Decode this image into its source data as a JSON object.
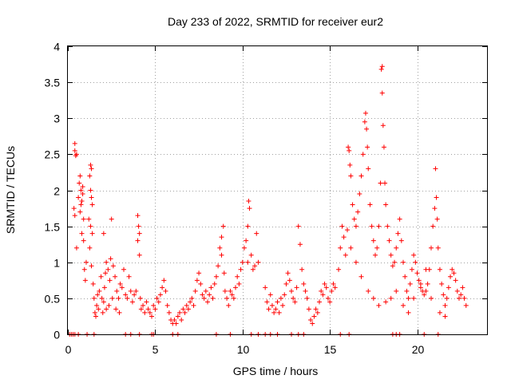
{
  "chart_data": {
    "type": "scatter",
    "title": "Day 233 of 2022, SRMTID for receiver eur2",
    "xlabel": "GPS time / hours",
    "ylabel": "SRMTID / TECUs",
    "xlim": [
      0,
      24
    ],
    "ylim": [
      0,
      4
    ],
    "xticks": [
      0,
      5,
      10,
      15,
      20
    ],
    "xtick_labels": [
      "0",
      "5",
      "10",
      "15",
      "20"
    ],
    "yticks": [
      0,
      0.5,
      1,
      1.5,
      2,
      2.5,
      3,
      3.5,
      4
    ],
    "ytick_labels": [
      "0",
      "0.5",
      "1",
      "1.5",
      "2",
      "2.5",
      "3",
      "3.5",
      "4"
    ],
    "grid": true,
    "marker": "+",
    "color": "#ff0000",
    "series": [
      {
        "name": "SRMTID",
        "points": [
          [
            0.1,
            0.0
          ],
          [
            0.2,
            0.0
          ],
          [
            0.3,
            0.0
          ],
          [
            0.4,
            0.0
          ],
          [
            0.6,
            0.0
          ],
          [
            1.1,
            0.0
          ],
          [
            1.5,
            0.0
          ],
          [
            3.3,
            0.0
          ],
          [
            3.6,
            0.0
          ],
          [
            4.1,
            0.0
          ],
          [
            4.8,
            0.0
          ],
          [
            4.9,
            0.0
          ],
          [
            6.0,
            0.0
          ],
          [
            6.3,
            0.0
          ],
          [
            8.5,
            0.0
          ],
          [
            9.3,
            0.0
          ],
          [
            10.5,
            0.0
          ],
          [
            10.9,
            0.0
          ],
          [
            11.3,
            0.0
          ],
          [
            11.6,
            0.0
          ],
          [
            12.0,
            0.0
          ],
          [
            12.8,
            0.0
          ],
          [
            13.2,
            0.0
          ],
          [
            13.5,
            0.0
          ],
          [
            15.6,
            0.0
          ],
          [
            16.1,
            0.0
          ],
          [
            18.6,
            0.0
          ],
          [
            18.8,
            0.0
          ],
          [
            19.0,
            0.0
          ],
          [
            20.4,
            0.0
          ],
          [
            21.2,
            0.0
          ],
          [
            0.4,
            2.65
          ],
          [
            0.4,
            2.55
          ],
          [
            0.45,
            2.48
          ],
          [
            0.5,
            2.5
          ],
          [
            0.35,
            1.75
          ],
          [
            0.4,
            1.65
          ],
          [
            0.5,
            1.2
          ],
          [
            0.6,
            1.9
          ],
          [
            0.65,
            2.1
          ],
          [
            0.7,
            2.2
          ],
          [
            0.75,
            2.0
          ],
          [
            0.8,
            1.85
          ],
          [
            0.85,
            1.95
          ],
          [
            0.9,
            1.6
          ],
          [
            0.8,
            1.4
          ],
          [
            0.9,
            1.3
          ],
          [
            0.95,
            0.9
          ],
          [
            1.0,
            0.75
          ],
          [
            1.05,
            1.0
          ],
          [
            0.7,
            1.7
          ],
          [
            0.75,
            1.8
          ],
          [
            0.85,
            2.05
          ],
          [
            1.3,
            2.35
          ],
          [
            1.35,
            2.3
          ],
          [
            1.25,
            2.2
          ],
          [
            1.3,
            2.0
          ],
          [
            1.35,
            1.9
          ],
          [
            1.4,
            1.8
          ],
          [
            1.2,
            1.6
          ],
          [
            1.3,
            1.5
          ],
          [
            1.4,
            1.4
          ],
          [
            1.25,
            1.2
          ],
          [
            1.35,
            0.95
          ],
          [
            1.45,
            0.7
          ],
          [
            1.5,
            0.5
          ],
          [
            1.55,
            0.3
          ],
          [
            1.6,
            0.25
          ],
          [
            1.65,
            0.4
          ],
          [
            1.7,
            0.55
          ],
          [
            1.75,
            0.35
          ],
          [
            1.8,
            0.6
          ],
          [
            1.9,
            0.8
          ],
          [
            1.95,
            0.5
          ],
          [
            2.0,
            0.3
          ],
          [
            2.05,
            0.45
          ],
          [
            2.1,
            0.65
          ],
          [
            2.15,
            0.85
          ],
          [
            2.2,
            1.0
          ],
          [
            2.3,
            0.9
          ],
          [
            2.4,
            0.75
          ],
          [
            2.45,
            1.05
          ],
          [
            2.5,
            1.6
          ],
          [
            2.6,
            0.95
          ],
          [
            2.7,
            0.8
          ],
          [
            2.8,
            0.6
          ],
          [
            2.9,
            0.5
          ],
          [
            3.0,
            0.7
          ],
          [
            3.1,
            0.65
          ],
          [
            3.2,
            0.9
          ],
          [
            3.3,
            0.55
          ],
          [
            3.4,
            0.5
          ],
          [
            3.5,
            0.8
          ],
          [
            3.6,
            0.6
          ],
          [
            3.7,
            0.45
          ],
          [
            3.8,
            0.55
          ],
          [
            3.9,
            0.6
          ],
          [
            2.05,
            1.4
          ],
          [
            2.2,
            0.35
          ],
          [
            2.35,
            0.4
          ],
          [
            2.55,
            0.5
          ],
          [
            2.75,
            0.35
          ],
          [
            2.95,
            0.3
          ],
          [
            4.0,
            1.65
          ],
          [
            4.05,
            1.5
          ],
          [
            4.1,
            1.4
          ],
          [
            4.0,
            1.3
          ],
          [
            4.1,
            1.1
          ],
          [
            4.15,
            0.5
          ],
          [
            4.2,
            0.35
          ],
          [
            4.3,
            0.4
          ],
          [
            4.4,
            0.3
          ],
          [
            4.5,
            0.45
          ],
          [
            4.6,
            0.35
          ],
          [
            4.7,
            0.3
          ],
          [
            4.8,
            0.25
          ],
          [
            4.9,
            0.4
          ],
          [
            5.0,
            0.35
          ],
          [
            5.1,
            0.5
          ],
          [
            5.2,
            0.45
          ],
          [
            5.3,
            0.55
          ],
          [
            5.4,
            0.65
          ],
          [
            5.5,
            0.75
          ],
          [
            5.6,
            0.6
          ],
          [
            5.7,
            0.4
          ],
          [
            5.8,
            0.3
          ],
          [
            5.9,
            0.2
          ],
          [
            6.0,
            0.15
          ],
          [
            6.1,
            0.2
          ],
          [
            6.2,
            0.15
          ],
          [
            6.3,
            0.25
          ],
          [
            6.4,
            0.3
          ],
          [
            6.5,
            0.2
          ],
          [
            6.6,
            0.35
          ],
          [
            6.7,
            0.3
          ],
          [
            6.8,
            0.4
          ],
          [
            6.9,
            0.35
          ],
          [
            7.0,
            0.45
          ],
          [
            7.1,
            0.5
          ],
          [
            7.2,
            0.4
          ],
          [
            7.3,
            0.6
          ],
          [
            7.4,
            0.75
          ],
          [
            7.5,
            0.85
          ],
          [
            7.6,
            0.7
          ],
          [
            7.7,
            0.55
          ],
          [
            7.8,
            0.5
          ],
          [
            7.9,
            0.6
          ],
          [
            8.0,
            0.45
          ],
          [
            8.1,
            0.55
          ],
          [
            8.2,
            0.65
          ],
          [
            8.3,
            0.5
          ],
          [
            8.4,
            0.7
          ],
          [
            8.5,
            0.8
          ],
          [
            8.6,
            0.95
          ],
          [
            8.7,
            1.2
          ],
          [
            8.8,
            1.35
          ],
          [
            8.9,
            1.5
          ],
          [
            8.8,
            1.1
          ],
          [
            8.95,
            0.85
          ],
          [
            9.0,
            0.6
          ],
          [
            9.1,
            0.5
          ],
          [
            9.2,
            0.4
          ],
          [
            9.3,
            0.6
          ],
          [
            9.4,
            0.55
          ],
          [
            9.5,
            0.5
          ],
          [
            9.6,
            0.65
          ],
          [
            9.7,
            0.8
          ],
          [
            9.8,
            0.7
          ],
          [
            9.9,
            0.9
          ],
          [
            10.0,
            1.0
          ],
          [
            10.1,
            1.2
          ],
          [
            10.2,
            1.3
          ],
          [
            10.3,
            1.0
          ],
          [
            10.35,
            1.85
          ],
          [
            10.4,
            1.75
          ],
          [
            10.3,
            1.5
          ],
          [
            10.5,
            1.1
          ],
          [
            10.6,
            0.9
          ],
          [
            10.7,
            0.95
          ],
          [
            10.8,
            1.4
          ],
          [
            10.9,
            1.0
          ],
          [
            11.3,
            0.65
          ],
          [
            11.4,
            0.45
          ],
          [
            11.5,
            0.35
          ],
          [
            11.6,
            0.55
          ],
          [
            11.7,
            0.4
          ],
          [
            11.8,
            0.3
          ],
          [
            11.9,
            0.35
          ],
          [
            12.0,
            0.45
          ],
          [
            12.1,
            0.3
          ],
          [
            12.2,
            0.5
          ],
          [
            12.3,
            0.4
          ],
          [
            12.4,
            0.55
          ],
          [
            12.5,
            0.7
          ],
          [
            12.6,
            0.85
          ],
          [
            12.7,
            0.75
          ],
          [
            12.8,
            0.6
          ],
          [
            12.9,
            0.5
          ],
          [
            13.0,
            0.45
          ],
          [
            13.1,
            0.65
          ],
          [
            13.2,
            1.5
          ],
          [
            13.3,
            1.25
          ],
          [
            13.4,
            0.9
          ],
          [
            13.5,
            0.7
          ],
          [
            13.6,
            0.6
          ],
          [
            13.7,
            0.5
          ],
          [
            13.8,
            0.35
          ],
          [
            13.9,
            0.2
          ],
          [
            14.0,
            0.15
          ],
          [
            14.1,
            0.25
          ],
          [
            14.2,
            0.35
          ],
          [
            14.3,
            0.3
          ],
          [
            14.4,
            0.45
          ],
          [
            14.5,
            0.6
          ],
          [
            14.6,
            0.55
          ],
          [
            14.7,
            0.7
          ],
          [
            14.8,
            0.65
          ],
          [
            14.9,
            0.5
          ],
          [
            15.0,
            0.45
          ],
          [
            15.1,
            0.6
          ],
          [
            15.2,
            0.7
          ],
          [
            15.3,
            0.65
          ],
          [
            15.5,
            0.9
          ],
          [
            15.6,
            1.2
          ],
          [
            15.7,
            1.5
          ],
          [
            15.8,
            1.35
          ],
          [
            15.9,
            1.1
          ],
          [
            16.0,
            1.45
          ],
          [
            16.05,
            2.6
          ],
          [
            16.1,
            2.55
          ],
          [
            16.15,
            2.35
          ],
          [
            16.2,
            2.2
          ],
          [
            16.3,
            1.8
          ],
          [
            16.4,
            1.6
          ],
          [
            16.5,
            1.5
          ],
          [
            16.6,
            1.7
          ],
          [
            16.7,
            1.95
          ],
          [
            16.8,
            2.2
          ],
          [
            16.9,
            2.5
          ],
          [
            17.0,
            2.95
          ],
          [
            17.05,
            3.07
          ],
          [
            17.1,
            2.85
          ],
          [
            17.15,
            2.6
          ],
          [
            17.2,
            2.3
          ],
          [
            17.3,
            1.8
          ],
          [
            17.4,
            1.5
          ],
          [
            17.5,
            1.3
          ],
          [
            17.6,
            1.1
          ],
          [
            17.7,
            1.2
          ],
          [
            17.8,
            1.5
          ],
          [
            17.9,
            2.1
          ],
          [
            17.95,
            3.68
          ],
          [
            18.0,
            3.72
          ],
          [
            18.0,
            3.35
          ],
          [
            18.05,
            2.9
          ],
          [
            18.1,
            2.6
          ],
          [
            18.15,
            2.1
          ],
          [
            18.2,
            1.8
          ],
          [
            18.3,
            1.5
          ],
          [
            18.4,
            1.3
          ],
          [
            18.5,
            1.1
          ],
          [
            18.6,
            0.95
          ],
          [
            18.7,
            1.0
          ],
          [
            18.8,
            1.2
          ],
          [
            18.9,
            1.4
          ],
          [
            19.0,
            1.6
          ],
          [
            19.1,
            1.3
          ],
          [
            19.2,
            1.0
          ],
          [
            19.3,
            0.8
          ],
          [
            19.4,
            0.6
          ],
          [
            19.5,
            0.5
          ],
          [
            19.6,
            0.7
          ],
          [
            19.7,
            0.9
          ],
          [
            19.8,
            1.1
          ],
          [
            19.9,
            1.0
          ],
          [
            20.0,
            0.85
          ],
          [
            20.1,
            0.75
          ],
          [
            20.2,
            0.65
          ],
          [
            20.3,
            0.6
          ],
          [
            20.4,
            0.55
          ],
          [
            20.5,
            0.6
          ],
          [
            20.6,
            0.7
          ],
          [
            20.7,
            0.9
          ],
          [
            20.8,
            1.2
          ],
          [
            20.9,
            1.5
          ],
          [
            21.0,
            1.75
          ],
          [
            21.05,
            2.3
          ],
          [
            21.1,
            1.9
          ],
          [
            21.15,
            1.6
          ],
          [
            21.2,
            1.2
          ],
          [
            21.3,
            0.9
          ],
          [
            21.4,
            0.7
          ],
          [
            21.5,
            0.55
          ],
          [
            21.6,
            0.4
          ],
          [
            21.7,
            0.5
          ],
          [
            21.8,
            0.65
          ],
          [
            21.9,
            0.8
          ],
          [
            22.0,
            0.9
          ],
          [
            22.1,
            0.85
          ],
          [
            22.2,
            0.75
          ],
          [
            22.3,
            0.6
          ],
          [
            22.4,
            0.5
          ],
          [
            22.5,
            0.55
          ],
          [
            22.6,
            0.65
          ],
          [
            22.7,
            0.5
          ],
          [
            22.8,
            0.4
          ],
          [
            16.2,
            1.2
          ],
          [
            16.5,
            1.0
          ],
          [
            16.8,
            0.8
          ],
          [
            17.2,
            0.6
          ],
          [
            17.5,
            0.5
          ],
          [
            17.8,
            0.4
          ],
          [
            18.2,
            0.45
          ],
          [
            18.5,
            0.5
          ],
          [
            18.8,
            0.6
          ],
          [
            19.2,
            0.4
          ],
          [
            19.5,
            0.3
          ],
          [
            19.8,
            0.5
          ],
          [
            20.2,
            0.7
          ],
          [
            20.5,
            0.9
          ],
          [
            20.8,
            0.5
          ],
          [
            21.3,
            0.3
          ],
          [
            21.6,
            0.25
          ]
        ]
      }
    ]
  }
}
